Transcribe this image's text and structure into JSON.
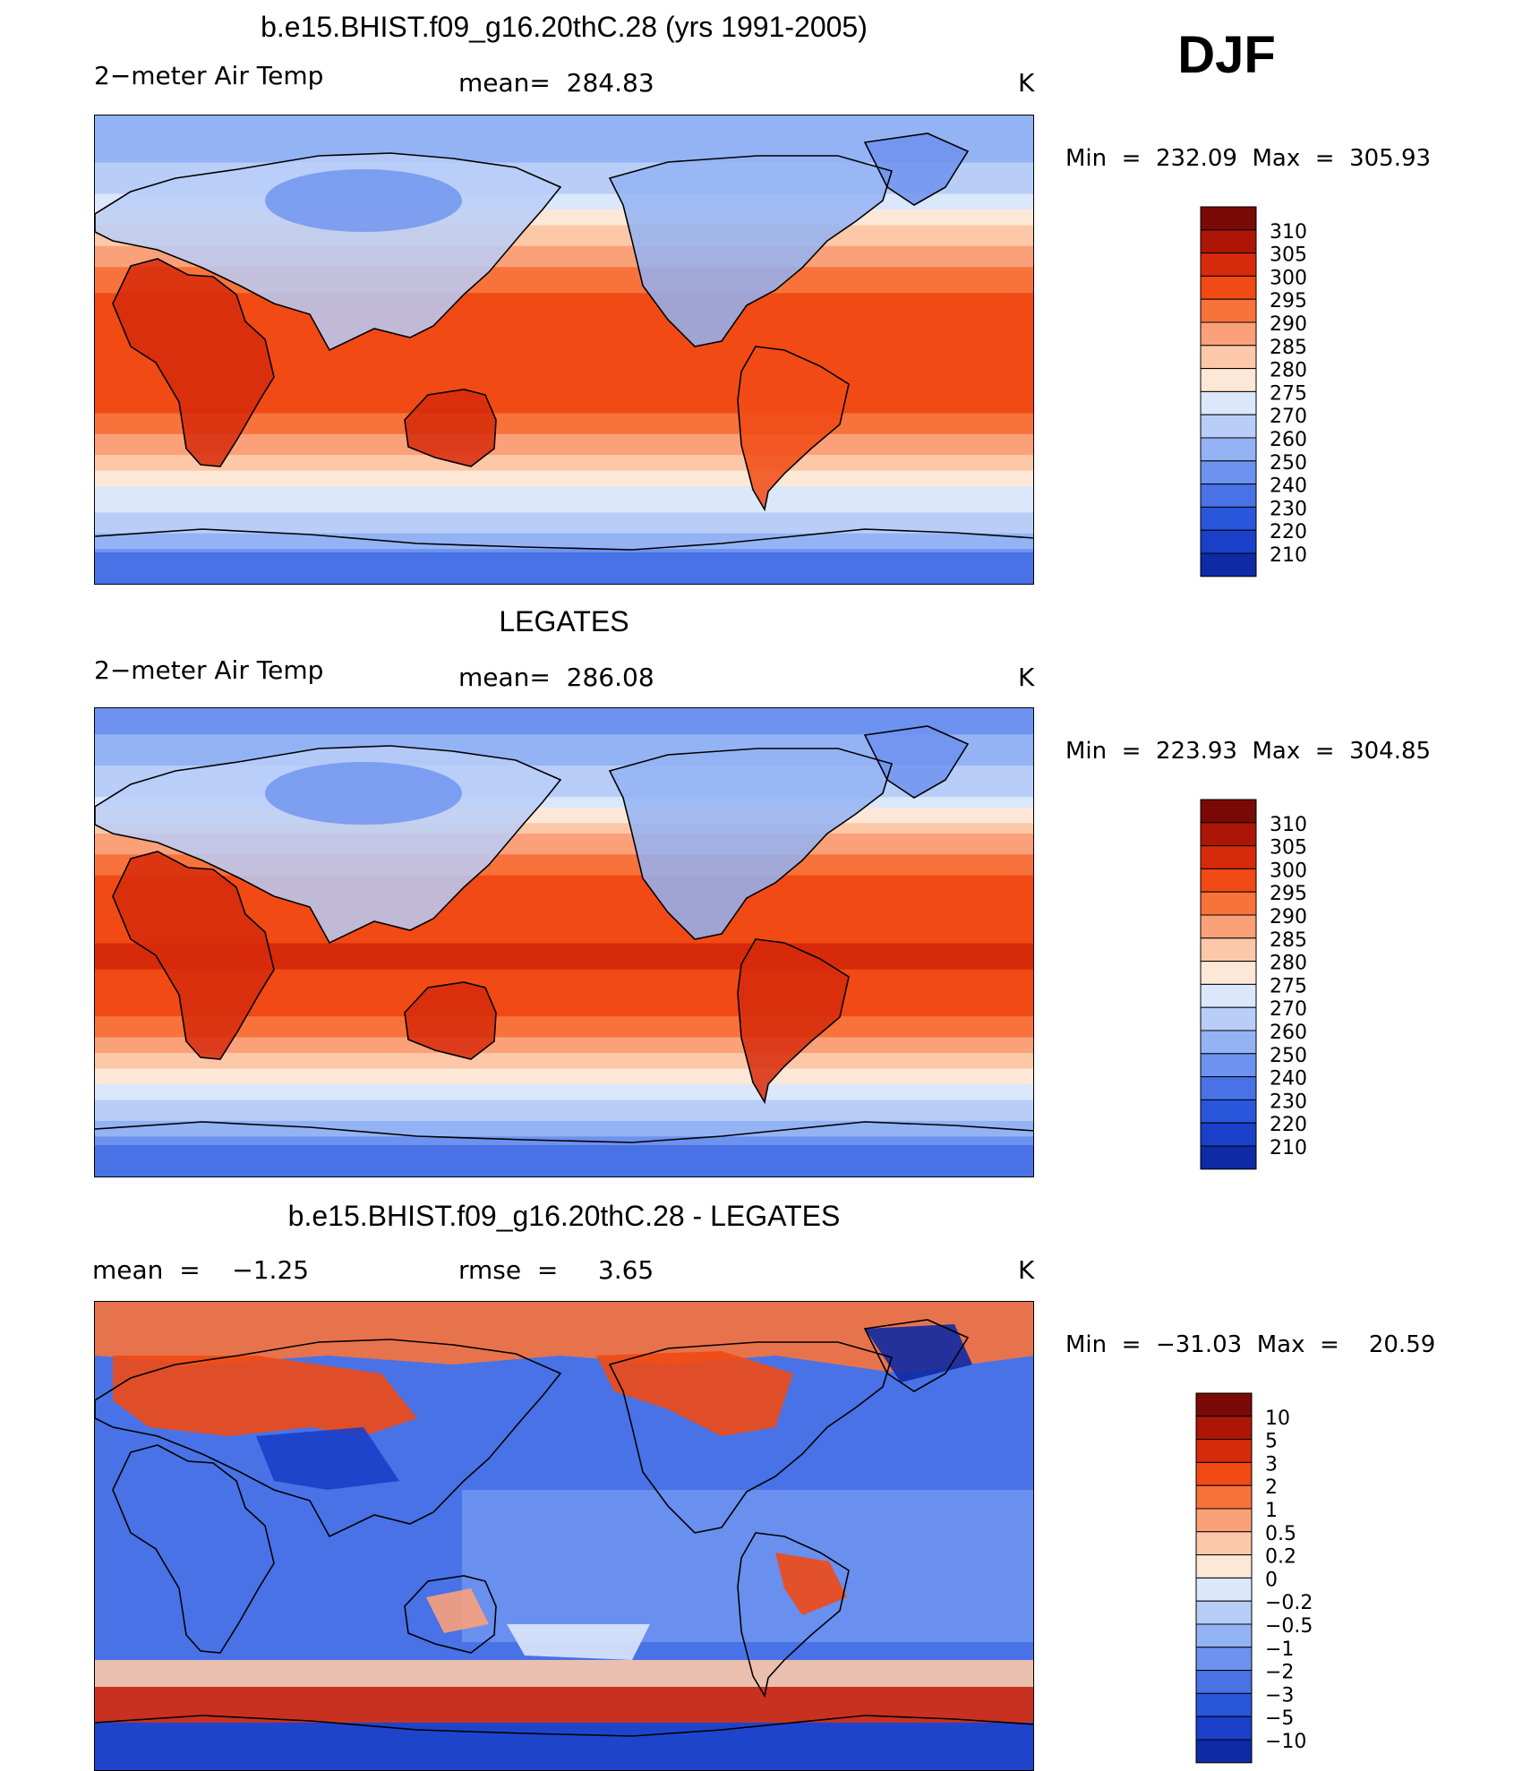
{
  "season": "DJF",
  "colors": {
    "temp_scale": [
      "#fbe0d0",
      "#7a0a06",
      "#ad1606",
      "#d62a0a",
      "#f14a14",
      "#f8733c",
      "#fba17a",
      "#fcc8a8",
      "#fde8d8",
      "#dbe7fb",
      "#b8cef8",
      "#93b3f5",
      "#6d92ef",
      "#4872e6",
      "#2a56dc",
      "#1a3fc9",
      "#0e2aa4",
      "#08157a"
    ],
    "diff_scale": [
      "#7a0a06",
      "#ad1606",
      "#d62a0a",
      "#f14a14",
      "#f8733c",
      "#fba17a",
      "#fcc8a8",
      "#fde8d8",
      "#dbe7fb",
      "#b8cef8",
      "#93b3f5",
      "#6d92ef",
      "#4872e6",
      "#2a56dc",
      "#1a3fc9",
      "#0e2aa4",
      "#08157a"
    ],
    "coastline": "#000000"
  },
  "panels": [
    {
      "title": "b.e15.BHIST.f09_g16.20thC.28 (yrs 1991-2005)",
      "left_label": "2−meter Air Temp",
      "center_label": "mean=  284.83",
      "units": "K",
      "minmax": "Min  =  232.09  Max  =  305.93"
    },
    {
      "title": "LEGATES",
      "left_label": "2−meter Air Temp",
      "center_label": "mean=  286.08",
      "units": "K",
      "minmax": "Min  =  223.93  Max  =  304.85"
    },
    {
      "title": "b.e15.BHIST.f09_g16.20thC.28 - LEGATES",
      "left_label": "mean  =    −1.25",
      "center_label": "rmse  =     3.65",
      "units": "K",
      "minmax": "Min  =  −31.03  Max  =    20.59"
    }
  ],
  "chart_data": [
    {
      "type": "heatmap",
      "title": "b.e15.BHIST.f09_g16.20thC.28 (yrs 1991-2005)",
      "variable": "2−meter Air Temp",
      "units": "K",
      "mean": 284.83,
      "min": 232.09,
      "max": 305.93,
      "colorbar_labels": [
        "310",
        "305",
        "300",
        "295",
        "290",
        "285",
        "280",
        "275",
        "270",
        "260",
        "250",
        "240",
        "230",
        "220",
        "210"
      ],
      "colorbar_boxes": 16,
      "zonal_profile": {
        "lat": [
          90,
          80,
          70,
          60,
          50,
          40,
          30,
          20,
          10,
          0,
          -10,
          -20,
          -30,
          -40,
          -50,
          -60,
          -70,
          -80,
          -90
        ],
        "value": [
          250,
          252,
          262,
          270,
          278,
          285,
          292,
          296,
          298,
          299,
          299,
          297,
          292,
          285,
          276,
          271,
          262,
          240,
          232
        ]
      }
    },
    {
      "type": "heatmap",
      "title": "LEGATES",
      "variable": "2−meter Air Temp",
      "units": "K",
      "mean": 286.08,
      "min": 223.93,
      "max": 304.85,
      "colorbar_labels": [
        "310",
        "305",
        "300",
        "295",
        "290",
        "285",
        "280",
        "275",
        "270",
        "260",
        "250",
        "240",
        "230",
        "220",
        "210"
      ],
      "colorbar_boxes": 16,
      "zonal_profile": {
        "lat": [
          90,
          80,
          70,
          60,
          50,
          40,
          30,
          20,
          10,
          0,
          -10,
          -20,
          -30,
          -40,
          -50,
          -60,
          -70,
          -80,
          -90
        ],
        "value": [
          248,
          250,
          258,
          266,
          276,
          286,
          293,
          297,
          299,
          300,
          300,
          298,
          294,
          287,
          278,
          270,
          258,
          238,
          230
        ]
      }
    },
    {
      "type": "heatmap",
      "title": "b.e15.BHIST.f09_g16.20thC.28 - LEGATES",
      "units": "K",
      "mean": -1.25,
      "rmse": 3.65,
      "min": -31.03,
      "max": 20.59,
      "colorbar_labels": [
        "10",
        "5",
        "3",
        "2",
        "1",
        "0.5",
        "0.2",
        "0",
        "−0.2",
        "−0.5",
        "−1",
        "−2",
        "−3",
        "−5",
        "−10"
      ],
      "colorbar_boxes": 16
    }
  ]
}
